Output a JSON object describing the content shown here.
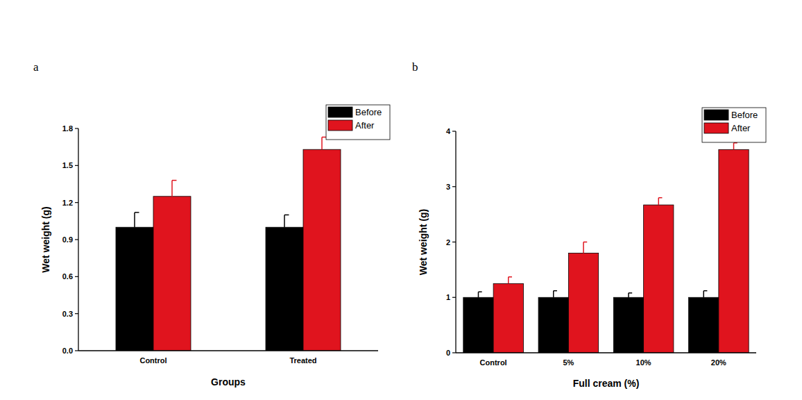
{
  "chart_data": [
    {
      "type": "bar",
      "title": "a",
      "x_label": "Groups",
      "y_label": "Wet weight (g)",
      "categories": [
        "Control",
        "Treated"
      ],
      "series": [
        {
          "name": "Before",
          "color": "#000000",
          "values": [
            1.0,
            1.0
          ],
          "error": [
            0.12,
            0.1
          ]
        },
        {
          "name": "After",
          "color": "#e0141e",
          "values": [
            1.25,
            1.63
          ],
          "error": [
            0.13,
            0.1
          ]
        }
      ],
      "ylim": [
        0,
        1.8
      ],
      "yticks": [
        {
          "value": 0,
          "label": "0.0"
        },
        0.3,
        0.6,
        0.9,
        1.2,
        1.5,
        1.8
      ],
      "legend": "top-right",
      "grid": false
    },
    {
      "type": "bar",
      "title": "b",
      "x_label": "Full cream (%)",
      "y_label": "Wet weight (g)",
      "categories": [
        "Control",
        "5%",
        "10%",
        "20%"
      ],
      "series": [
        {
          "name": "Before",
          "color": "#000000",
          "values": [
            1.0,
            1.0,
            1.0,
            1.0
          ],
          "error": [
            0.1,
            0.12,
            0.08,
            0.12
          ]
        },
        {
          "name": "After",
          "color": "#e0141e",
          "values": [
            1.25,
            1.8,
            2.67,
            3.67
          ],
          "error": [
            0.12,
            0.2,
            0.13,
            0.12
          ]
        }
      ],
      "ylim": [
        0,
        4
      ],
      "yticks": [
        0,
        1,
        2,
        3,
        4
      ],
      "legend": "top-right",
      "grid": false
    }
  ]
}
